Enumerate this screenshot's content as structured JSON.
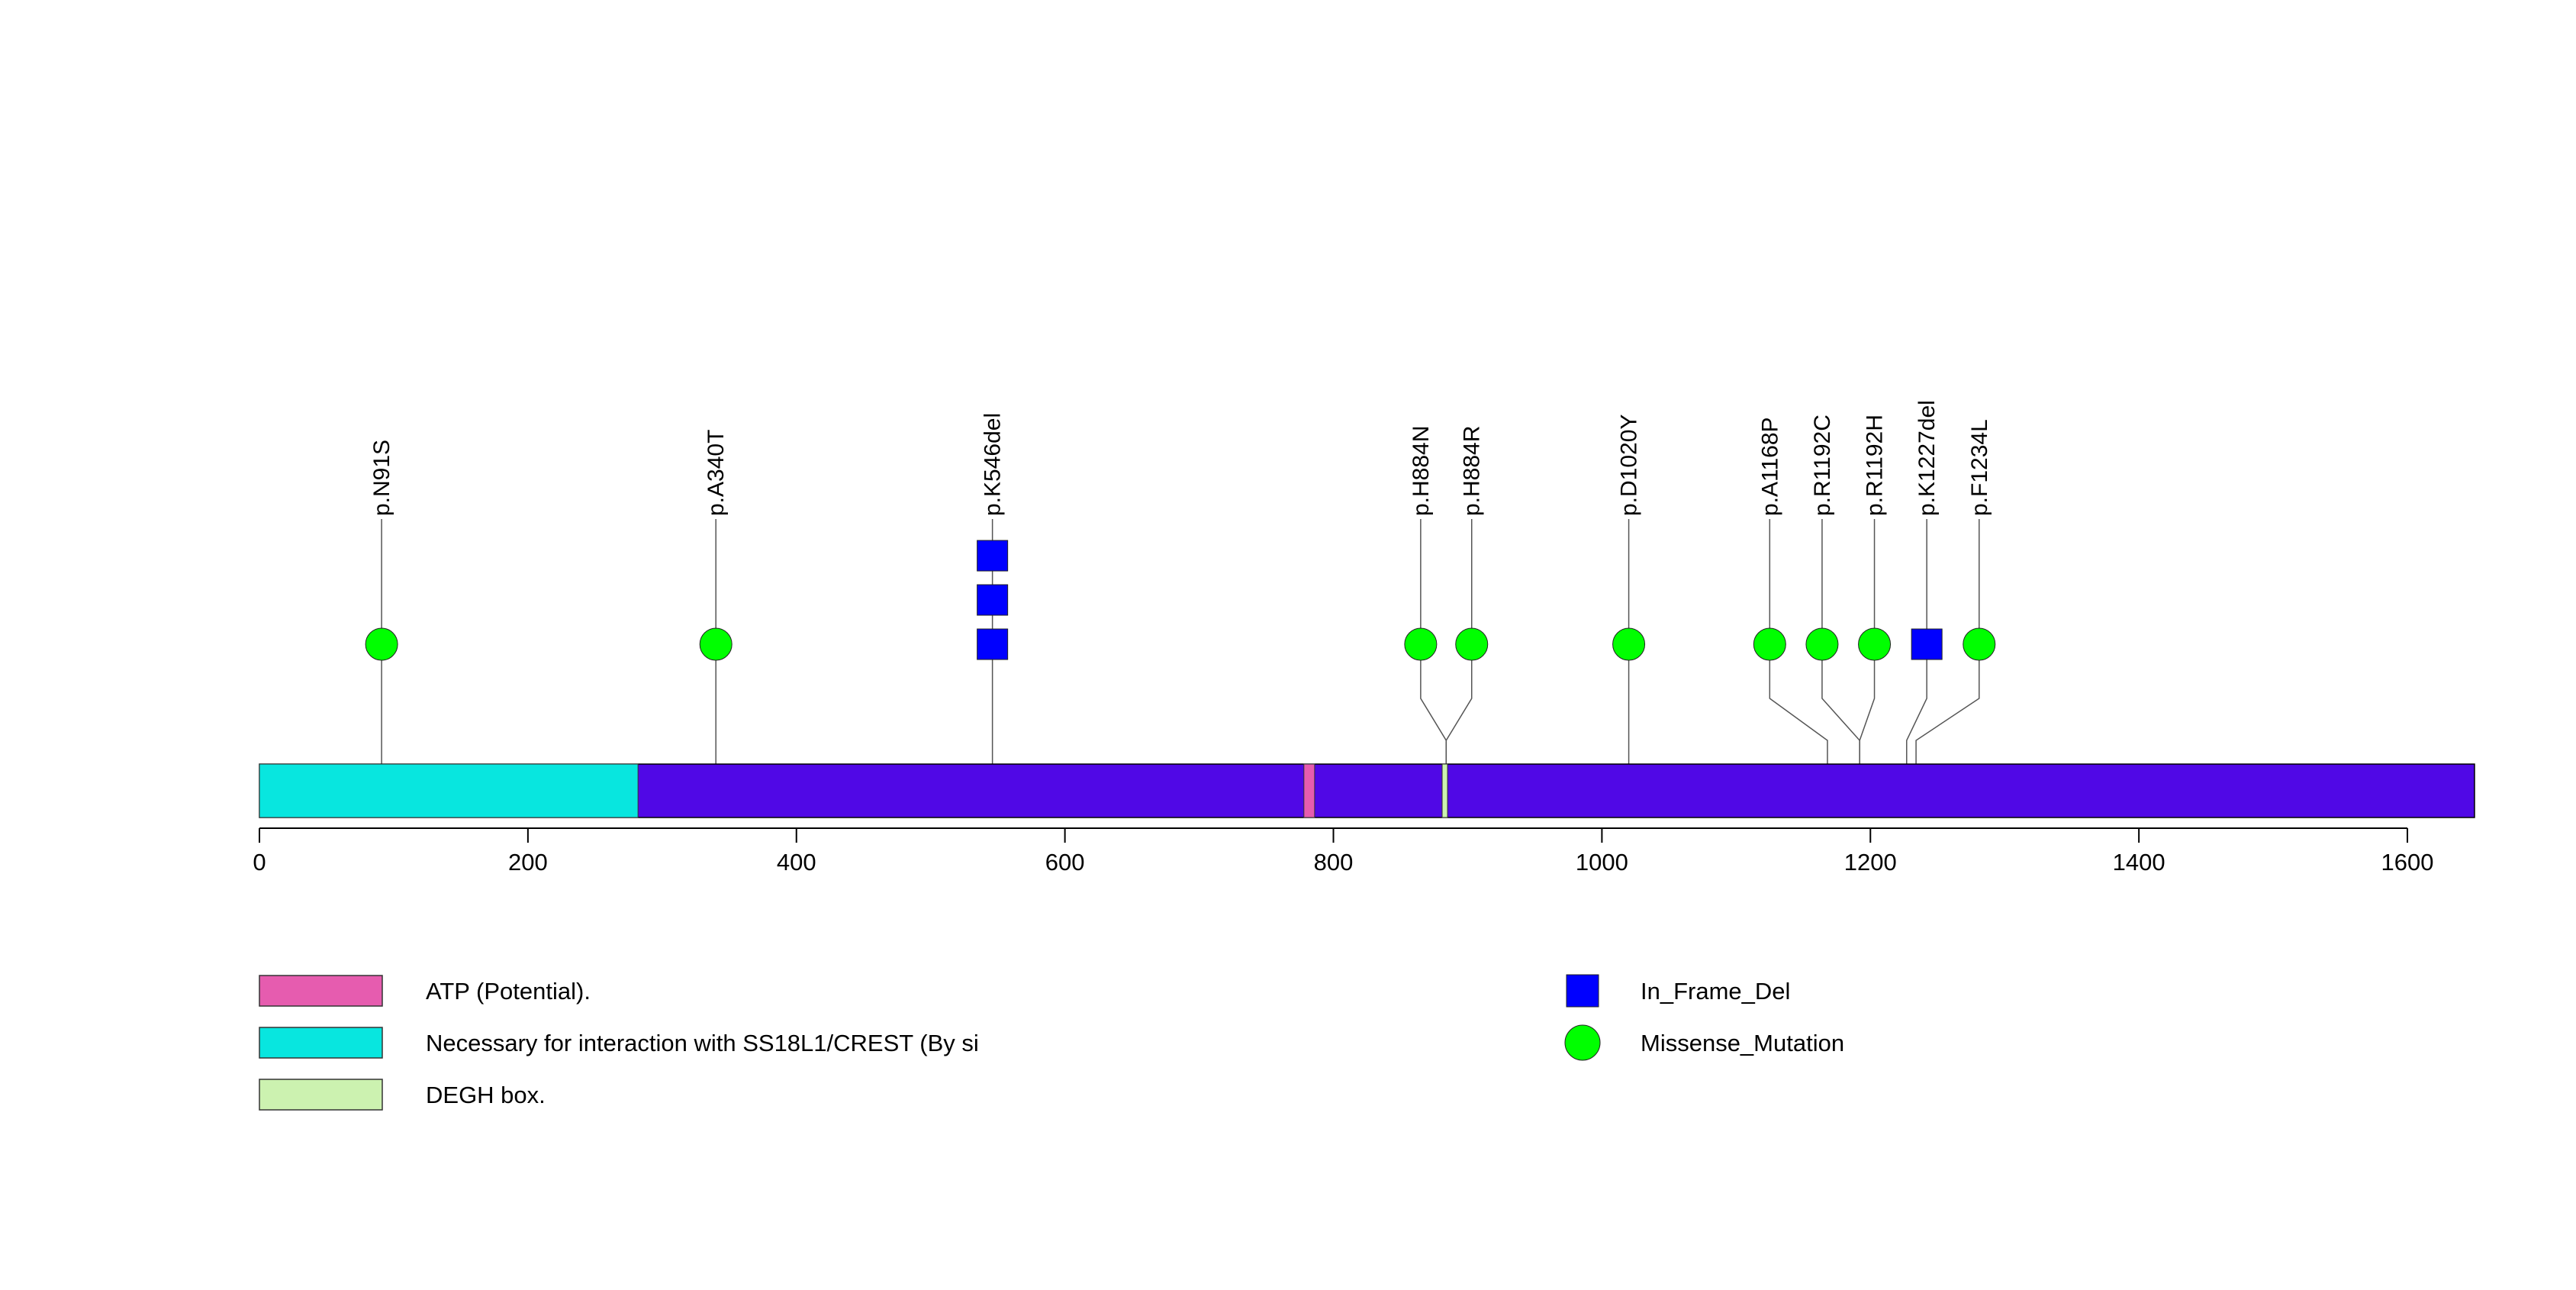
{
  "chart_data": {
    "type": "lollipop",
    "protein_length": 1650,
    "x_ticks": [
      0,
      200,
      400,
      600,
      800,
      1000,
      1200,
      1400,
      1600
    ],
    "backbone_color": "#5008E6",
    "domains": [
      {
        "name": "Necessary for interaction with SS18L1/CREST (By si",
        "start": 1,
        "end": 282,
        "color": "#08E6DF"
      },
      {
        "name": "ATP (Potential).",
        "start": 779,
        "end": 786,
        "color": "#E65CAF"
      },
      {
        "name": "DEGH box.",
        "start": 882,
        "end": 885,
        "color": "#CCF2B0"
      }
    ],
    "mutations": [
      {
        "label": "p.N91S",
        "position": 91,
        "x_display": 91,
        "count": 1,
        "type": "Missense_Mutation"
      },
      {
        "label": "p.A340T",
        "position": 340,
        "x_display": 340,
        "count": 1,
        "type": "Missense_Mutation"
      },
      {
        "label": "p.K546del",
        "position": 546,
        "x_display": 546,
        "count": 3,
        "type": "In_Frame_Del"
      },
      {
        "label": "p.H884N",
        "position": 884,
        "x_display": 865,
        "count": 1,
        "type": "Missense_Mutation"
      },
      {
        "label": "p.H884R",
        "position": 884,
        "x_display": 903,
        "count": 1,
        "type": "Missense_Mutation"
      },
      {
        "label": "p.D1020Y",
        "position": 1020,
        "x_display": 1020,
        "count": 1,
        "type": "Missense_Mutation"
      },
      {
        "label": "p.A1168P",
        "position": 1168,
        "x_display": 1125,
        "count": 1,
        "type": "Missense_Mutation"
      },
      {
        "label": "p.R1192C",
        "position": 1192,
        "x_display": 1164,
        "count": 1,
        "type": "Missense_Mutation"
      },
      {
        "label": "p.R1192H",
        "position": 1192,
        "x_display": 1203,
        "count": 1,
        "type": "Missense_Mutation"
      },
      {
        "label": "p.K1227del",
        "position": 1227,
        "x_display": 1242,
        "count": 1,
        "type": "In_Frame_Del"
      },
      {
        "label": "p.F1234L",
        "position": 1234,
        "x_display": 1281,
        "count": 1,
        "type": "Missense_Mutation"
      }
    ],
    "mutation_legend": [
      {
        "name": "In_Frame_Del",
        "shape": "square",
        "color": "#0000FF"
      },
      {
        "name": "Missense_Mutation",
        "shape": "circle",
        "color": "#00FF00"
      }
    ]
  }
}
